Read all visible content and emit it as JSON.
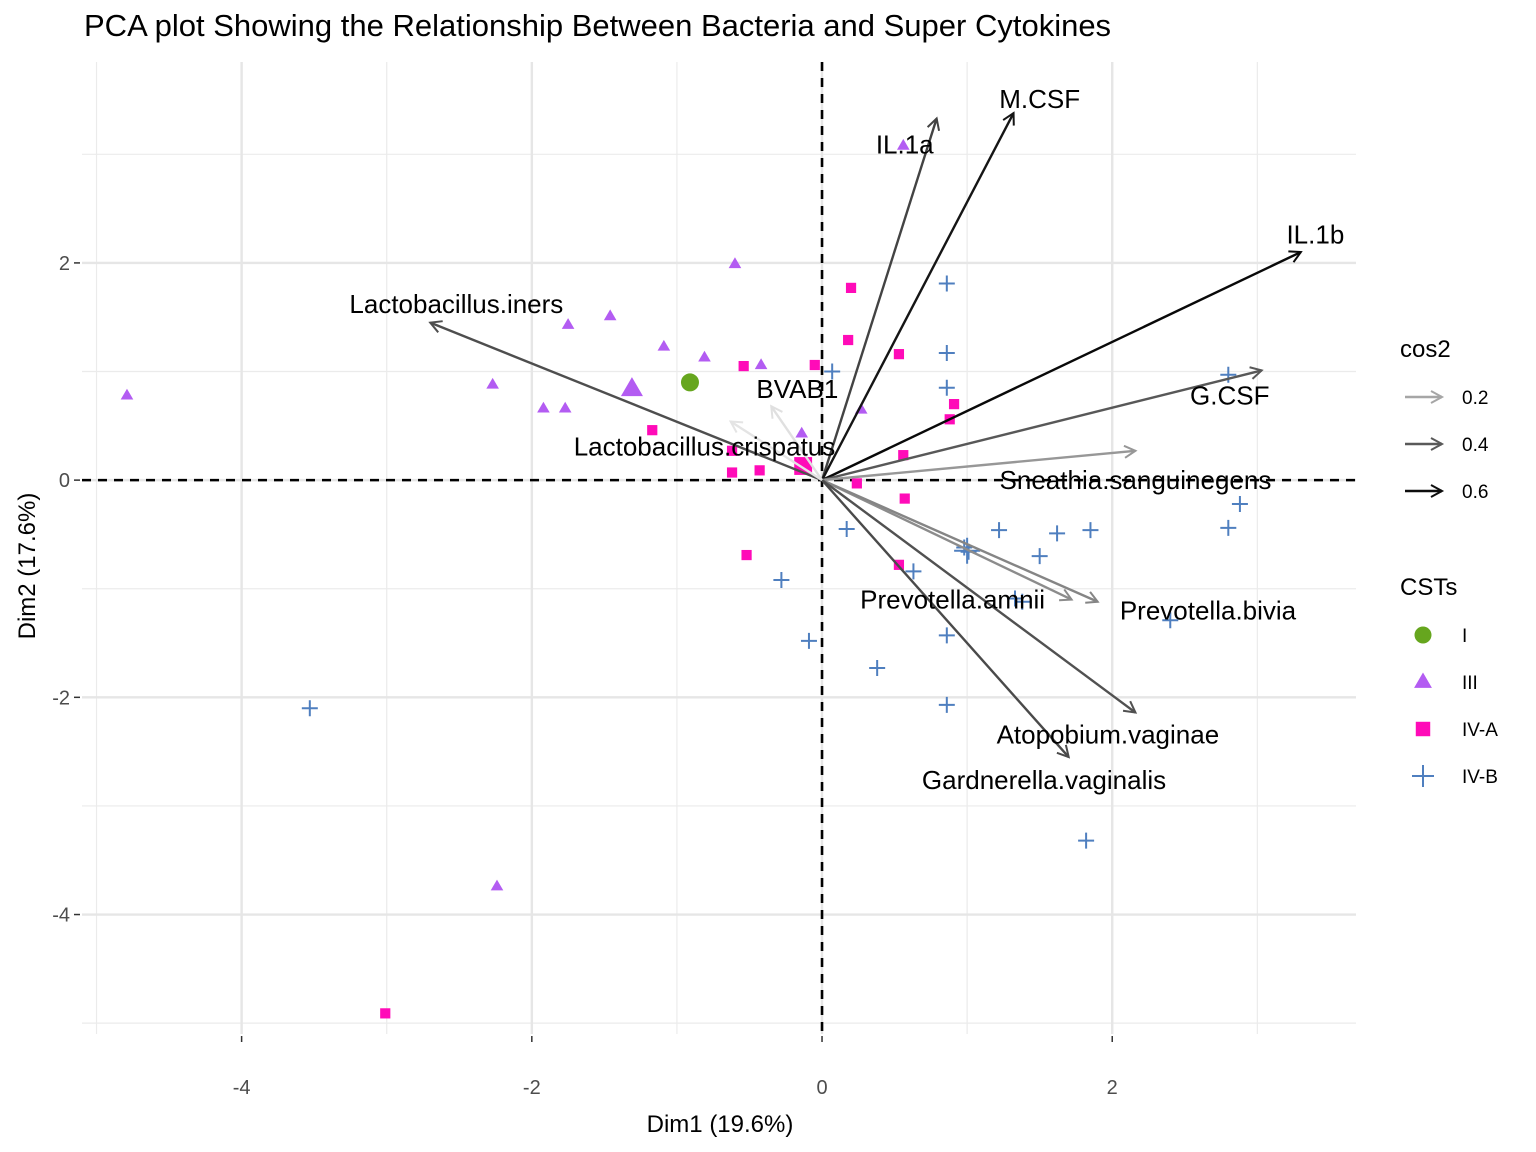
{
  "chart_data": {
    "type": "scatter",
    "title": "PCA plot Showing the Relationship Between Bacteria and Super Cytokines",
    "xlabel": "Dim1 (19.6%)",
    "ylabel": "Dim2 (17.6%)",
    "xlim": [
      -5.1,
      3.68
    ],
    "ylim": [
      -5.1,
      3.85
    ],
    "x_ticks": [
      -4,
      -2,
      0,
      2
    ],
    "x_tick_labels": [
      "-4",
      "-2",
      "0",
      "2"
    ],
    "y_ticks": [
      2,
      0,
      -2,
      -4
    ],
    "y_tick_labels": [
      "2",
      "0",
      "-2",
      "-4"
    ],
    "grid": true,
    "reference_lines": {
      "x": 0,
      "y": 0,
      "style": "dashed"
    },
    "legend_placement": "right",
    "legends": {
      "cos2": {
        "title": "cos2",
        "entries": [
          {
            "label": "0.2",
            "color": "#a6a6a6"
          },
          {
            "label": "0.4",
            "color": "#595959"
          },
          {
            "label": "0.6",
            "color": "#0d0d0d"
          }
        ]
      },
      "csts": {
        "title": "CSTs",
        "entries": [
          {
            "label": "I",
            "color": "#66a61e",
            "shape": "circle"
          },
          {
            "label": "III",
            "color": "#b35cf2",
            "shape": "triangle"
          },
          {
            "label": "IV-A",
            "color": "#ff0bb8",
            "shape": "square"
          },
          {
            "label": "IV-B",
            "color": "#4f7fbf",
            "shape": "cross"
          }
        ]
      }
    },
    "variables": [
      {
        "name": "IL.1a",
        "x": 0.79,
        "y": 3.33,
        "cos2": 0.48,
        "lx": 0.57,
        "ly": 3.09
      },
      {
        "name": "M.CSF",
        "x": 1.32,
        "y": 3.38,
        "cos2": 0.62,
        "lx": 1.5,
        "ly": 3.51
      },
      {
        "name": "IL.1b",
        "x": 3.3,
        "y": 2.1,
        "cos2": 0.68,
        "lx": 3.4,
        "ly": 2.26
      },
      {
        "name": "G.CSF",
        "x": 3.03,
        "y": 1.01,
        "cos2": 0.42,
        "lx": 2.81,
        "ly": 0.78
      },
      {
        "name": "Sneathia.sanguinegens",
        "x": 2.16,
        "y": 0.27,
        "cos2": 0.25,
        "lx": 2.16,
        "ly": 0.0
      },
      {
        "name": "Prevotella.amnii",
        "x": 1.72,
        "y": -1.1,
        "cos2": 0.28,
        "lx": 0.9,
        "ly": -1.1
      },
      {
        "name": "Prevotella.bivia",
        "x": 1.9,
        "y": -1.12,
        "cos2": 0.3,
        "lx": 2.66,
        "ly": -1.2
      },
      {
        "name": "Atopobium.vaginae",
        "x": 2.16,
        "y": -2.14,
        "cos2": 0.44,
        "lx": 1.97,
        "ly": -2.34
      },
      {
        "name": "Gardnerella.vaginalis",
        "x": 1.7,
        "y": -2.55,
        "cos2": 0.46,
        "lx": 1.53,
        "ly": -2.76
      },
      {
        "name": "Lactobacillus.iners",
        "x": -2.7,
        "y": 1.45,
        "cos2": 0.45,
        "lx": -2.52,
        "ly": 1.62
      },
      {
        "name": "BVAB1",
        "x": -0.35,
        "y": 0.68,
        "cos2": 0.07,
        "lx": -0.17,
        "ly": 0.84
      },
      {
        "name": "Lactobacillus.crispatus",
        "x": -0.63,
        "y": 0.54,
        "cos2": 0.06,
        "lx": -0.81,
        "ly": 0.31
      }
    ],
    "series": [
      {
        "name": "I",
        "shape": "circle",
        "color": "#66a61e",
        "points": [
          [
            -0.91,
            0.9
          ]
        ],
        "centroid": [
          -0.91,
          0.9
        ]
      },
      {
        "name": "III",
        "shape": "triangle",
        "color": "#b35cf2",
        "points": [
          [
            -4.79,
            0.78
          ],
          [
            -2.27,
            0.88
          ],
          [
            -2.24,
            -3.74
          ],
          [
            -1.92,
            0.66
          ],
          [
            -1.77,
            0.66
          ],
          [
            -1.75,
            1.43
          ],
          [
            -1.46,
            1.51
          ],
          [
            -1.09,
            1.23
          ],
          [
            -0.81,
            1.13
          ],
          [
            -0.6,
            1.99
          ],
          [
            -0.42,
            1.06
          ],
          [
            -0.14,
            0.43
          ],
          [
            0.27,
            0.65
          ],
          [
            0.56,
            3.08
          ]
        ],
        "centroid": [
          -1.31,
          0.84
        ]
      },
      {
        "name": "IV-A",
        "shape": "square",
        "color": "#ff0bb8",
        "points": [
          [
            -3.01,
            -4.91
          ],
          [
            -1.17,
            0.46
          ],
          [
            -0.62,
            0.07
          ],
          [
            -0.62,
            0.27
          ],
          [
            -0.54,
            1.05
          ],
          [
            -0.52,
            -0.69
          ],
          [
            -0.43,
            0.09
          ],
          [
            -0.05,
            1.06
          ],
          [
            0.18,
            1.29
          ],
          [
            0.2,
            1.77
          ],
          [
            0.24,
            -0.03
          ],
          [
            0.53,
            1.16
          ],
          [
            0.53,
            -0.78
          ],
          [
            0.56,
            0.23
          ],
          [
            0.57,
            -0.17
          ],
          [
            0.88,
            0.56
          ],
          [
            0.91,
            0.7
          ]
        ],
        "centroid": [
          -0.13,
          0.13
        ]
      },
      {
        "name": "IV-B",
        "shape": "cross",
        "color": "#4f7fbf",
        "points": [
          [
            -3.53,
            -2.1
          ],
          [
            -0.28,
            -0.92
          ],
          [
            -0.09,
            -1.48
          ],
          [
            0.07,
            1.0
          ],
          [
            0.17,
            -0.45
          ],
          [
            0.38,
            -1.73
          ],
          [
            0.63,
            -0.84
          ],
          [
            0.86,
            1.81
          ],
          [
            0.86,
            1.17
          ],
          [
            0.86,
            0.85
          ],
          [
            0.86,
            -1.43
          ],
          [
            0.86,
            -2.07
          ],
          [
            0.98,
            -0.62
          ],
          [
            1.01,
            -0.66
          ],
          [
            1.22,
            -0.46
          ],
          [
            1.33,
            -1.09
          ],
          [
            1.38,
            -1.12
          ],
          [
            1.5,
            -0.7
          ],
          [
            1.62,
            -0.49
          ],
          [
            1.85,
            -0.46
          ],
          [
            1.82,
            -3.32
          ],
          [
            2.4,
            -1.29
          ],
          [
            2.8,
            0.97
          ],
          [
            2.8,
            -0.44
          ],
          [
            2.88,
            -0.22
          ]
        ],
        "centroid": [
          1.0,
          -0.65
        ]
      }
    ]
  }
}
